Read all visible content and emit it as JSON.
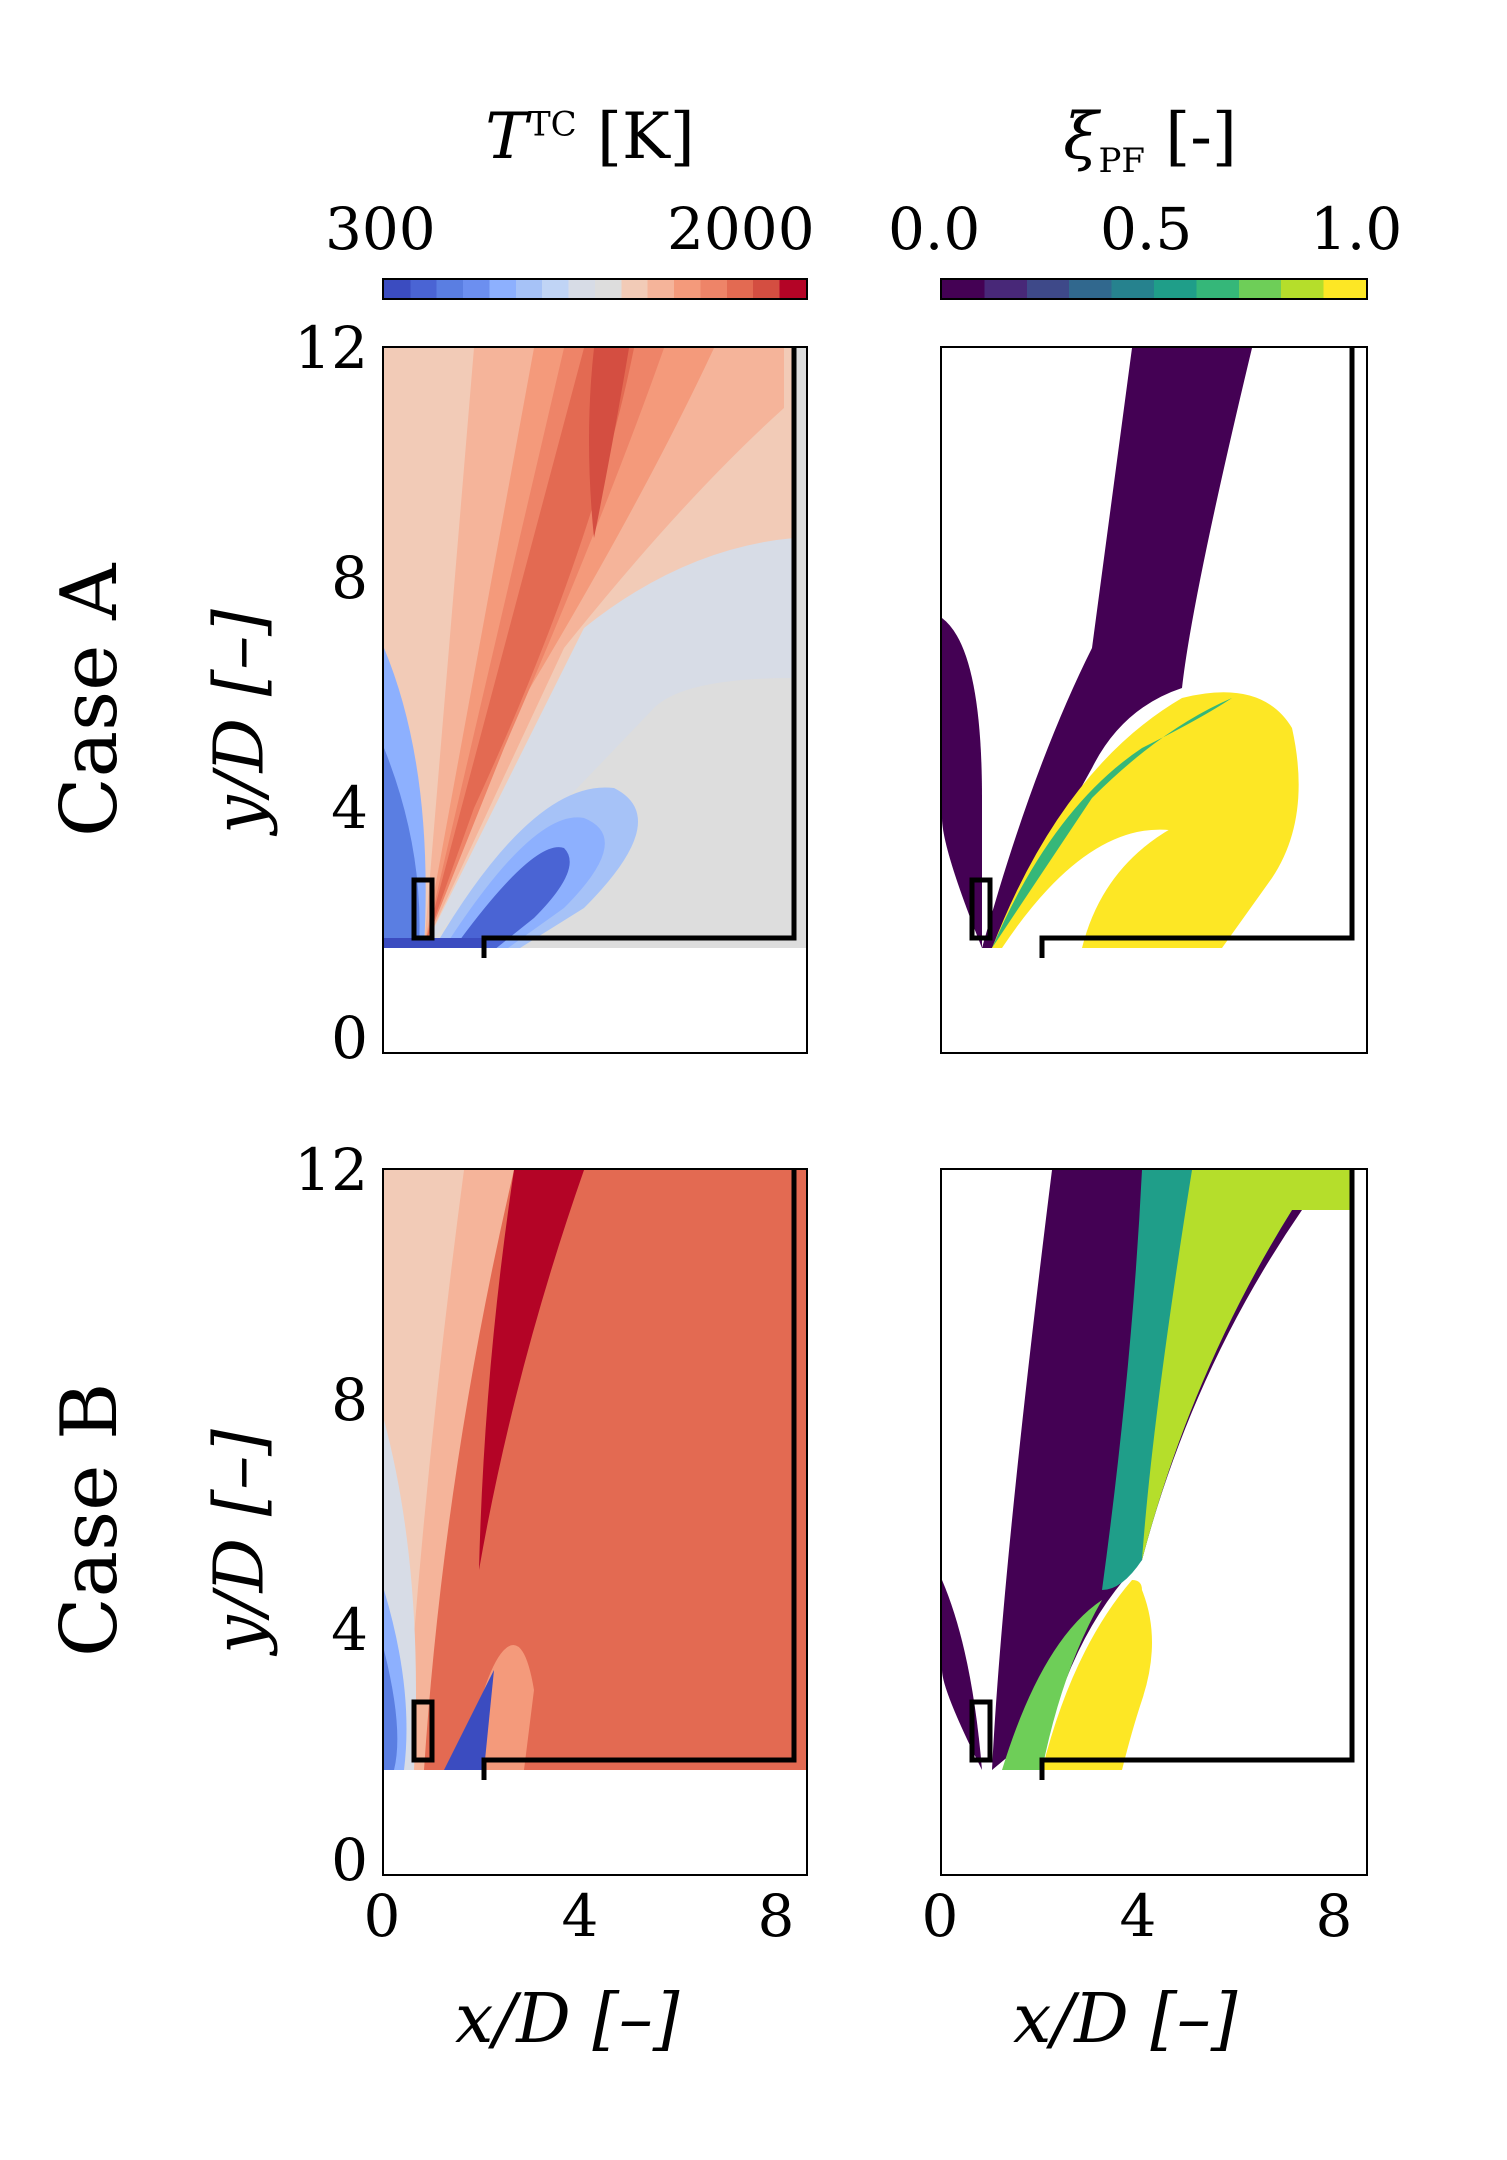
{
  "colorbars": [
    {
      "title_main": "T",
      "title_sup": "TC",
      "title_unit": "[K]",
      "ticks": [
        "300",
        "2000"
      ],
      "colors": [
        "#3b4cc0",
        "#4a64d4",
        "#5a7ee2",
        "#6c8ff0",
        "#8db0fe",
        "#a6c2f7",
        "#c0d4f5",
        "#d7dce6",
        "#dddddd",
        "#f2cbb7",
        "#f5b49a",
        "#f49a7b",
        "#ee8468",
        "#e36a52",
        "#d44e41",
        "#b40426"
      ]
    },
    {
      "title_main": "ξ",
      "title_sub": "PF",
      "title_unit": "[-]",
      "ticks": [
        "0.0",
        "0.5",
        "1.0"
      ],
      "colors": [
        "#440154",
        "#482878",
        "#3e4989",
        "#31688e",
        "#26828e",
        "#1f9e89",
        "#35b779",
        "#6ece58",
        "#b5de2b",
        "#fde725"
      ]
    }
  ],
  "rows": [
    {
      "label": "Case A",
      "ylabel": "y/D [–]"
    },
    {
      "label": "Case B",
      "ylabel": "y/D [–]"
    }
  ],
  "xlabel": "x/D [–]",
  "yticks": [
    "12",
    "8",
    "4",
    "0"
  ],
  "xticks": [
    "0",
    "4",
    "8"
  ],
  "chart_data": [
    {
      "type": "heatmap",
      "title": "Case A",
      "variable": "T^TC [K]",
      "xlabel": "x/D [–]",
      "ylabel": "y/D [–]",
      "colorscale_range": [
        300,
        2000
      ],
      "xlim": [
        0,
        8.6
      ],
      "ylim": [
        -0.3,
        12
      ],
      "yticks": [
        0,
        4,
        8,
        12
      ]
    },
    {
      "type": "heatmap",
      "title": "Case A",
      "variable": "ξ_PF [-]",
      "xlabel": "x/D [–]",
      "ylabel": "y/D [–]",
      "colorscale_range": [
        0.0,
        1.0
      ],
      "xlim": [
        0,
        8.6
      ],
      "ylim": [
        -0.3,
        12
      ],
      "yticks": [
        0,
        4,
        8,
        12
      ]
    },
    {
      "type": "heatmap",
      "title": "Case B",
      "variable": "T^TC [K]",
      "xlabel": "x/D [–]",
      "ylabel": "y/D [–]",
      "colorscale_range": [
        300,
        2000
      ],
      "xlim": [
        0,
        8.6
      ],
      "ylim": [
        -0.3,
        12
      ],
      "xticks": [
        0,
        4,
        8
      ],
      "yticks": [
        0,
        4,
        8,
        12
      ]
    },
    {
      "type": "heatmap",
      "title": "Case B",
      "variable": "ξ_PF [-]",
      "xlabel": "x/D [–]",
      "ylabel": "y/D [–]",
      "colorscale_range": [
        0.0,
        1.0
      ],
      "xlim": [
        0,
        8.6
      ],
      "ylim": [
        -0.3,
        12
      ],
      "xticks": [
        0,
        4,
        8
      ],
      "yticks": [
        0,
        4,
        8,
        12
      ]
    }
  ]
}
